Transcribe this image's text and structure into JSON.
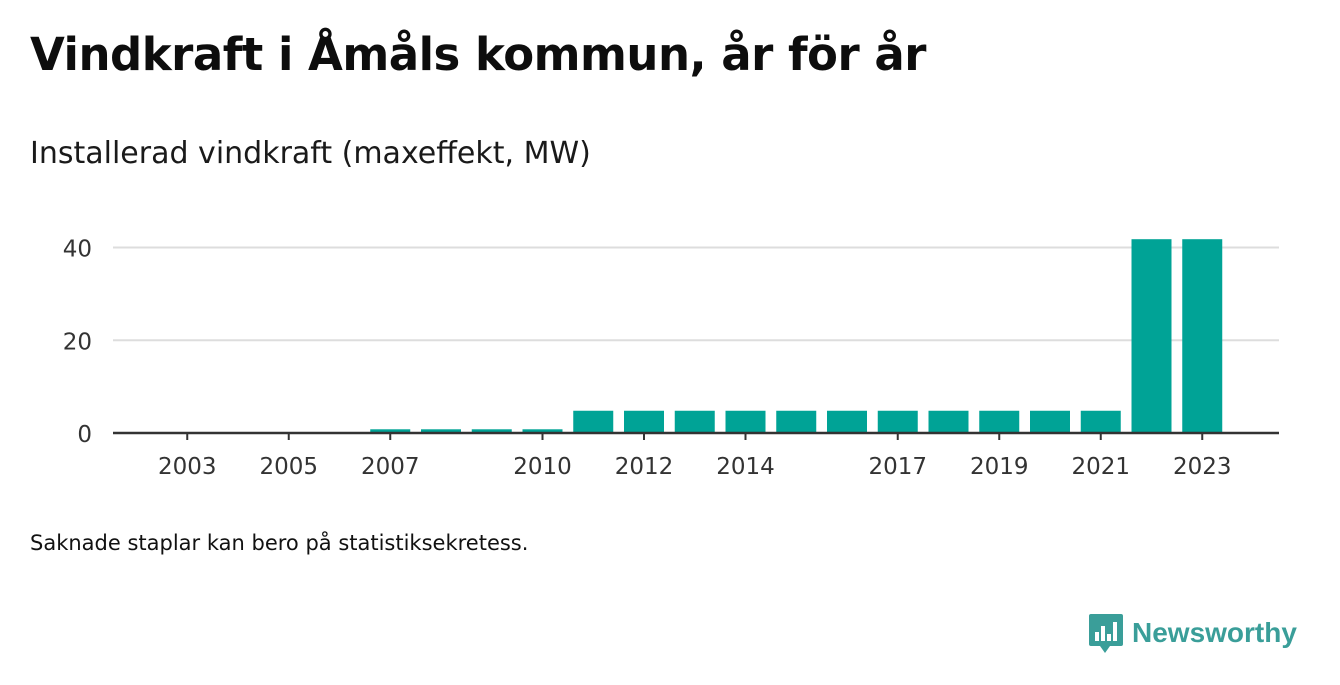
{
  "title": "Vindkraft i Åmåls kommun, år för år",
  "subtitle": "Installerad vindkraft (maxeffekt, MW)",
  "note": "Saknade staplar kan bero på statistiksekretess.",
  "brand": "Newsworthy",
  "colors": {
    "bar": "#00a396",
    "grid": "#dddddd",
    "axis": "#333333",
    "brand": "#3a9e99"
  },
  "chart_data": {
    "type": "bar",
    "title": "Vindkraft i Åmåls kommun, år för år",
    "ylabel": "Installerad vindkraft (maxeffekt, MW)",
    "xlabel": "",
    "categories": [
      "2002",
      "2003",
      "2004",
      "2005",
      "2006",
      "2007",
      "2008",
      "2009",
      "2010",
      "2011",
      "2012",
      "2013",
      "2014",
      "2015",
      "2016",
      "2017",
      "2018",
      "2019",
      "2020",
      "2021",
      "2022",
      "2023"
    ],
    "values": [
      0,
      0,
      0,
      0,
      0,
      0.8,
      0.8,
      0.8,
      0.8,
      4.8,
      4.8,
      4.8,
      4.8,
      4.8,
      4.8,
      4.8,
      4.8,
      4.8,
      4.8,
      4.8,
      41.8,
      41.8
    ],
    "xtick_labels": [
      "2003",
      "2005",
      "2007",
      "2010",
      "2012",
      "2014",
      "2017",
      "2019",
      "2021",
      "2023"
    ],
    "yticks": [
      0,
      20,
      40
    ],
    "ylim": [
      0,
      44
    ],
    "grid": true
  }
}
